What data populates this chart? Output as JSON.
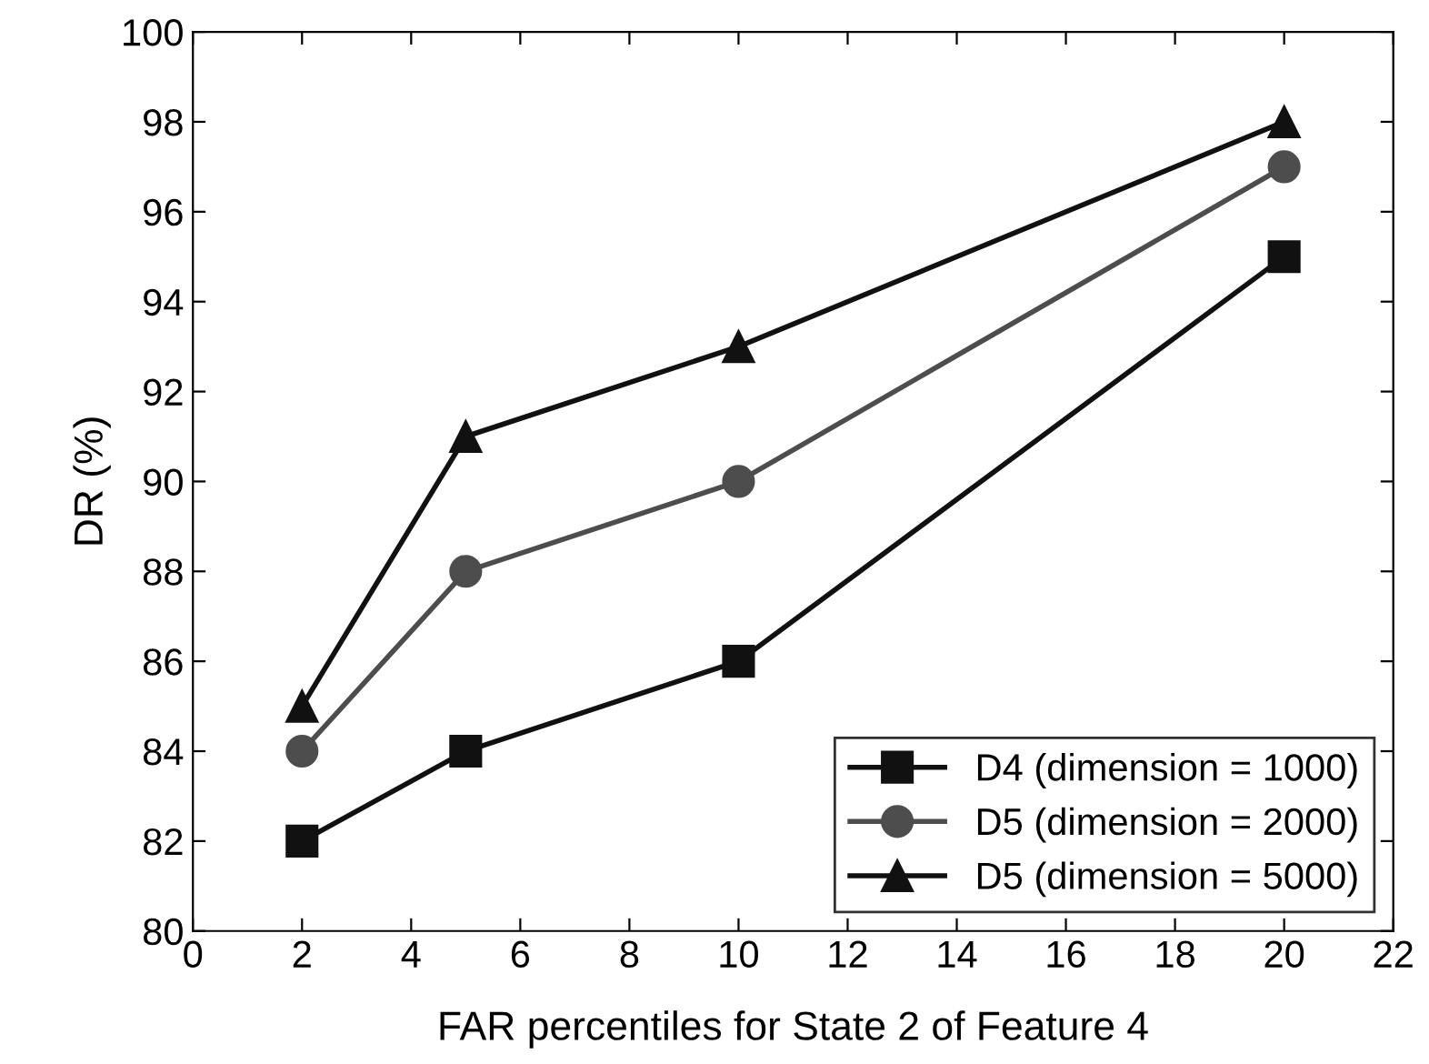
{
  "chart_data": {
    "type": "line",
    "xlabel": "FAR percentiles for State 2 of Feature 4",
    "ylabel": "DR (%)",
    "x": [
      2,
      5,
      10,
      20
    ],
    "series": [
      {
        "name": "D4 (dimension = 1000)",
        "color": "#111111",
        "marker": "square",
        "values": [
          82,
          84,
          86,
          95
        ]
      },
      {
        "name": "D5 (dimension = 2000)",
        "color": "#4d4d4d",
        "marker": "circle",
        "values": [
          84,
          88,
          90,
          97
        ]
      },
      {
        "name": "D5 (dimension = 5000)",
        "color": "#111111",
        "marker": "triangle",
        "values": [
          85,
          91,
          93,
          98
        ]
      }
    ],
    "xlim": [
      0,
      22
    ],
    "xticks": [
      0,
      2,
      4,
      6,
      8,
      10,
      12,
      14,
      16,
      18,
      20,
      22
    ],
    "ylim": [
      80,
      100
    ],
    "yticks": [
      80,
      82,
      84,
      86,
      88,
      90,
      92,
      94,
      96,
      98,
      100
    ],
    "grid": false,
    "legend": "bottom right",
    "line_style": "solid"
  }
}
